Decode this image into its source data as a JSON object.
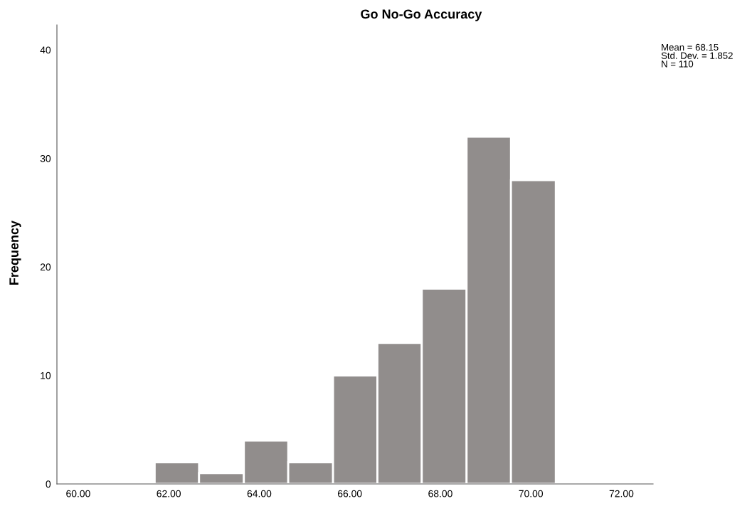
{
  "chart_data": {
    "type": "histogram",
    "title": "Go No-Go Accuracy",
    "ylabel": "Frequency",
    "bins": [
      61.69,
      62.67,
      63.66,
      64.64,
      65.63,
      66.61,
      67.59,
      68.58,
      69.56,
      70.55
    ],
    "values": [
      2,
      1,
      4,
      2,
      10,
      13,
      18,
      32,
      28
    ],
    "color": "#918d8c",
    "xlim": [
      59.53,
      72.7
    ],
    "xticks": [
      {
        "value": 60,
        "label": "60.00"
      },
      {
        "value": 62,
        "label": "62.00"
      },
      {
        "value": 64,
        "label": "64.00"
      },
      {
        "value": 66,
        "label": "66.00"
      },
      {
        "value": 68,
        "label": "68.00"
      },
      {
        "value": 70,
        "label": "70.00"
      },
      {
        "value": 72,
        "label": "72.00"
      }
    ],
    "ylim": [
      0,
      42.3
    ],
    "yticks": [
      0,
      10,
      20,
      30,
      40
    ],
    "grid": false,
    "legend": false,
    "annotations": [
      "Mean = 68.15",
      "Std. Dev. = 1.852",
      "N = 110"
    ]
  }
}
